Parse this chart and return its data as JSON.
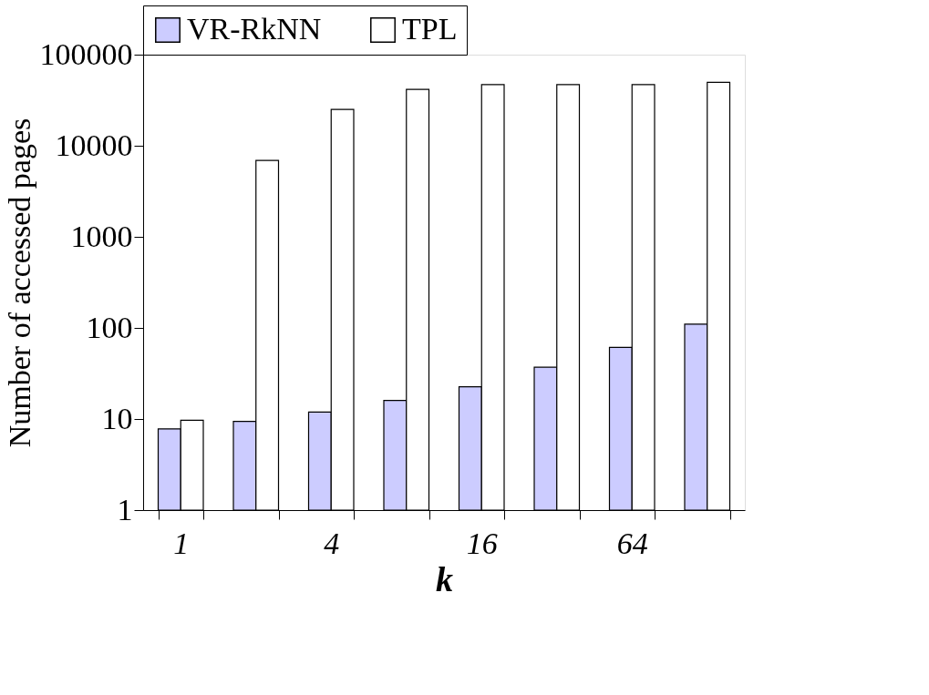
{
  "chart_data": {
    "type": "bar",
    "xlabel": "k",
    "ylabel": "Number of accessed pages",
    "categories": [
      "1",
      null,
      "4",
      null,
      "16",
      null,
      "64",
      null
    ],
    "series": [
      {
        "name": "VR-RkNN",
        "color": "#ccccff",
        "values": [
          7.8,
          9.4,
          11.9,
          16,
          22.6,
          37,
          61,
          110
        ]
      },
      {
        "name": "TPL",
        "color": "#ffffff",
        "values": [
          9.7,
          6900,
          25000,
          41500,
          47000,
          47000,
          47000,
          49700
        ]
      }
    ],
    "log": "y",
    "ylim": [
      1,
      100000
    ],
    "yticks": [
      1,
      10,
      100,
      1000,
      10000,
      100000
    ],
    "grid": false,
    "legend": "top"
  }
}
